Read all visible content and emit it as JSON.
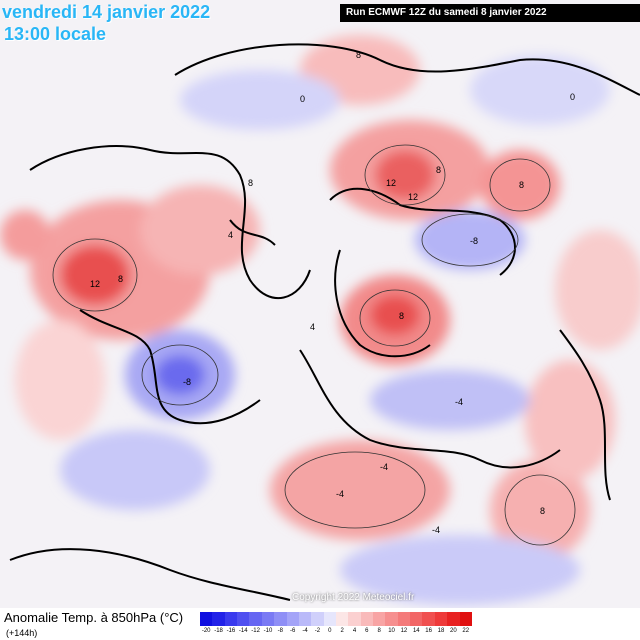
{
  "header": {
    "valid_date": "vendredi 14 janvier 2022",
    "local_time": "13:00 locale",
    "run_info": "Run ECMWF 12Z du samedi 8 janvier 2022"
  },
  "map": {
    "projection": "polar stereographic, northern hemisphere",
    "coastline_color": "#000000",
    "positive_anomaly_color": "#e8504f",
    "negative_anomaly_color": "#5a5af0",
    "neutral_color": "#f4f2f6",
    "contour_labels": [
      "8",
      "8",
      "8",
      "12",
      "12",
      "12",
      "8",
      "8",
      "8",
      "-4",
      "-4",
      "-8",
      "-8",
      "-4",
      "0",
      "4",
      "0",
      "4",
      "-4",
      "8"
    ],
    "copyright": "Copyright 2022 Meteociel.fr"
  },
  "legend": {
    "label": "Anomalie Temp. à 850hPa (°C)",
    "lead_time": "(+144h)",
    "ticks": [
      "-20",
      "-18",
      "-16",
      "-14",
      "-12",
      "-10",
      "-8",
      "-6",
      "-4",
      "-2",
      "0",
      "2",
      "4",
      "6",
      "8",
      "10",
      "12",
      "14",
      "16",
      "18",
      "20",
      "22"
    ],
    "colors": [
      "#1010e0",
      "#2222e8",
      "#3a3aee",
      "#5050f0",
      "#6666f2",
      "#7a7af4",
      "#8f8ff6",
      "#a4a4f8",
      "#babaf9",
      "#d0d0fb",
      "#e6e6fc",
      "#fce6e6",
      "#fbd0d0",
      "#f9baba",
      "#f8a4a4",
      "#f68f8f",
      "#f47a7a",
      "#f26666",
      "#f05050",
      "#ee3a3a",
      "#e82222",
      "#e01010"
    ]
  }
}
